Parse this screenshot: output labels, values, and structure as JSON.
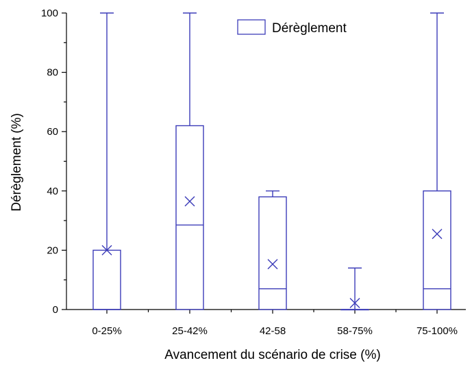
{
  "chart_data": {
    "type": "box",
    "xlabel": "Avancement du scénario de crise (%)",
    "ylabel": "Dérèglement (%)",
    "ylim": [
      0,
      100
    ],
    "yticks": [
      0,
      20,
      40,
      60,
      80,
      100
    ],
    "legend": {
      "label": "Dérèglement",
      "placement": "top-center"
    },
    "color": "#3b3bb8",
    "categories": [
      "0-25%",
      "25-42%",
      "42-58",
      "58-75%",
      "75-100%"
    ],
    "boxes": [
      {
        "category": "0-25%",
        "whisker_low": 0,
        "q1": 0,
        "median": 0,
        "q3": 20,
        "whisker_high": 100,
        "mean": 20
      },
      {
        "category": "25-42%",
        "whisker_low": 0,
        "q1": 0,
        "median": 28.5,
        "q3": 62,
        "whisker_high": 100,
        "mean": 36.5
      },
      {
        "category": "42-58",
        "whisker_low": 0,
        "q1": 0,
        "median": 7,
        "q3": 38,
        "whisker_high": 40,
        "mean": 15.3
      },
      {
        "category": "58-75%",
        "whisker_low": 0,
        "q1": 0,
        "median": 0,
        "q3": 0,
        "whisker_high": 14,
        "mean": 2.2
      },
      {
        "category": "75-100%",
        "whisker_low": 0,
        "q1": 0,
        "median": 7,
        "q3": 40,
        "whisker_high": 100,
        "mean": 25.5
      }
    ]
  }
}
